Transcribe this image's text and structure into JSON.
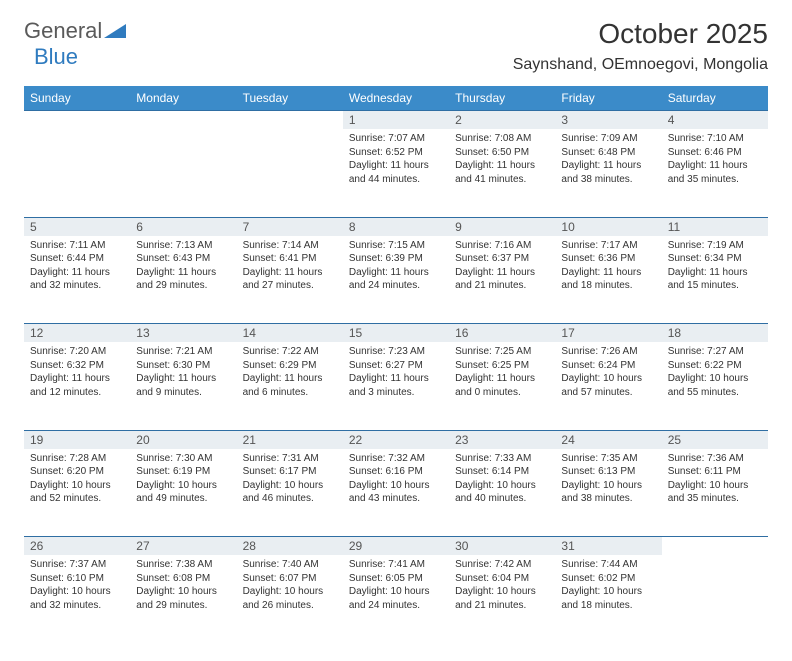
{
  "logo": {
    "general": "General",
    "blue": "Blue"
  },
  "title": "October 2025",
  "location": "Saynshand, OEmnoegovi, Mongolia",
  "colors": {
    "header_bg": "#3b8bc9",
    "header_text": "#ffffff",
    "rule": "#2f6ea3",
    "daynum_bg": "#e9eef2",
    "text": "#333333",
    "logo_gray": "#5a5a5a",
    "logo_blue": "#2f7bbf"
  },
  "day_names": [
    "Sunday",
    "Monday",
    "Tuesday",
    "Wednesday",
    "Thursday",
    "Friday",
    "Saturday"
  ],
  "weeks": [
    [
      null,
      null,
      null,
      {
        "n": "1",
        "sr": "7:07 AM",
        "ss": "6:52 PM",
        "dl": "11 hours and 44 minutes."
      },
      {
        "n": "2",
        "sr": "7:08 AM",
        "ss": "6:50 PM",
        "dl": "11 hours and 41 minutes."
      },
      {
        "n": "3",
        "sr": "7:09 AM",
        "ss": "6:48 PM",
        "dl": "11 hours and 38 minutes."
      },
      {
        "n": "4",
        "sr": "7:10 AM",
        "ss": "6:46 PM",
        "dl": "11 hours and 35 minutes."
      }
    ],
    [
      {
        "n": "5",
        "sr": "7:11 AM",
        "ss": "6:44 PM",
        "dl": "11 hours and 32 minutes."
      },
      {
        "n": "6",
        "sr": "7:13 AM",
        "ss": "6:43 PM",
        "dl": "11 hours and 29 minutes."
      },
      {
        "n": "7",
        "sr": "7:14 AM",
        "ss": "6:41 PM",
        "dl": "11 hours and 27 minutes."
      },
      {
        "n": "8",
        "sr": "7:15 AM",
        "ss": "6:39 PM",
        "dl": "11 hours and 24 minutes."
      },
      {
        "n": "9",
        "sr": "7:16 AM",
        "ss": "6:37 PM",
        "dl": "11 hours and 21 minutes."
      },
      {
        "n": "10",
        "sr": "7:17 AM",
        "ss": "6:36 PM",
        "dl": "11 hours and 18 minutes."
      },
      {
        "n": "11",
        "sr": "7:19 AM",
        "ss": "6:34 PM",
        "dl": "11 hours and 15 minutes."
      }
    ],
    [
      {
        "n": "12",
        "sr": "7:20 AM",
        "ss": "6:32 PM",
        "dl": "11 hours and 12 minutes."
      },
      {
        "n": "13",
        "sr": "7:21 AM",
        "ss": "6:30 PM",
        "dl": "11 hours and 9 minutes."
      },
      {
        "n": "14",
        "sr": "7:22 AM",
        "ss": "6:29 PM",
        "dl": "11 hours and 6 minutes."
      },
      {
        "n": "15",
        "sr": "7:23 AM",
        "ss": "6:27 PM",
        "dl": "11 hours and 3 minutes."
      },
      {
        "n": "16",
        "sr": "7:25 AM",
        "ss": "6:25 PM",
        "dl": "11 hours and 0 minutes."
      },
      {
        "n": "17",
        "sr": "7:26 AM",
        "ss": "6:24 PM",
        "dl": "10 hours and 57 minutes."
      },
      {
        "n": "18",
        "sr": "7:27 AM",
        "ss": "6:22 PM",
        "dl": "10 hours and 55 minutes."
      }
    ],
    [
      {
        "n": "19",
        "sr": "7:28 AM",
        "ss": "6:20 PM",
        "dl": "10 hours and 52 minutes."
      },
      {
        "n": "20",
        "sr": "7:30 AM",
        "ss": "6:19 PM",
        "dl": "10 hours and 49 minutes."
      },
      {
        "n": "21",
        "sr": "7:31 AM",
        "ss": "6:17 PM",
        "dl": "10 hours and 46 minutes."
      },
      {
        "n": "22",
        "sr": "7:32 AM",
        "ss": "6:16 PM",
        "dl": "10 hours and 43 minutes."
      },
      {
        "n": "23",
        "sr": "7:33 AM",
        "ss": "6:14 PM",
        "dl": "10 hours and 40 minutes."
      },
      {
        "n": "24",
        "sr": "7:35 AM",
        "ss": "6:13 PM",
        "dl": "10 hours and 38 minutes."
      },
      {
        "n": "25",
        "sr": "7:36 AM",
        "ss": "6:11 PM",
        "dl": "10 hours and 35 minutes."
      }
    ],
    [
      {
        "n": "26",
        "sr": "7:37 AM",
        "ss": "6:10 PM",
        "dl": "10 hours and 32 minutes."
      },
      {
        "n": "27",
        "sr": "7:38 AM",
        "ss": "6:08 PM",
        "dl": "10 hours and 29 minutes."
      },
      {
        "n": "28",
        "sr": "7:40 AM",
        "ss": "6:07 PM",
        "dl": "10 hours and 26 minutes."
      },
      {
        "n": "29",
        "sr": "7:41 AM",
        "ss": "6:05 PM",
        "dl": "10 hours and 24 minutes."
      },
      {
        "n": "30",
        "sr": "7:42 AM",
        "ss": "6:04 PM",
        "dl": "10 hours and 21 minutes."
      },
      {
        "n": "31",
        "sr": "7:44 AM",
        "ss": "6:02 PM",
        "dl": "10 hours and 18 minutes."
      },
      null
    ]
  ],
  "labels": {
    "sunrise": "Sunrise:",
    "sunset": "Sunset:",
    "daylight": "Daylight:"
  }
}
